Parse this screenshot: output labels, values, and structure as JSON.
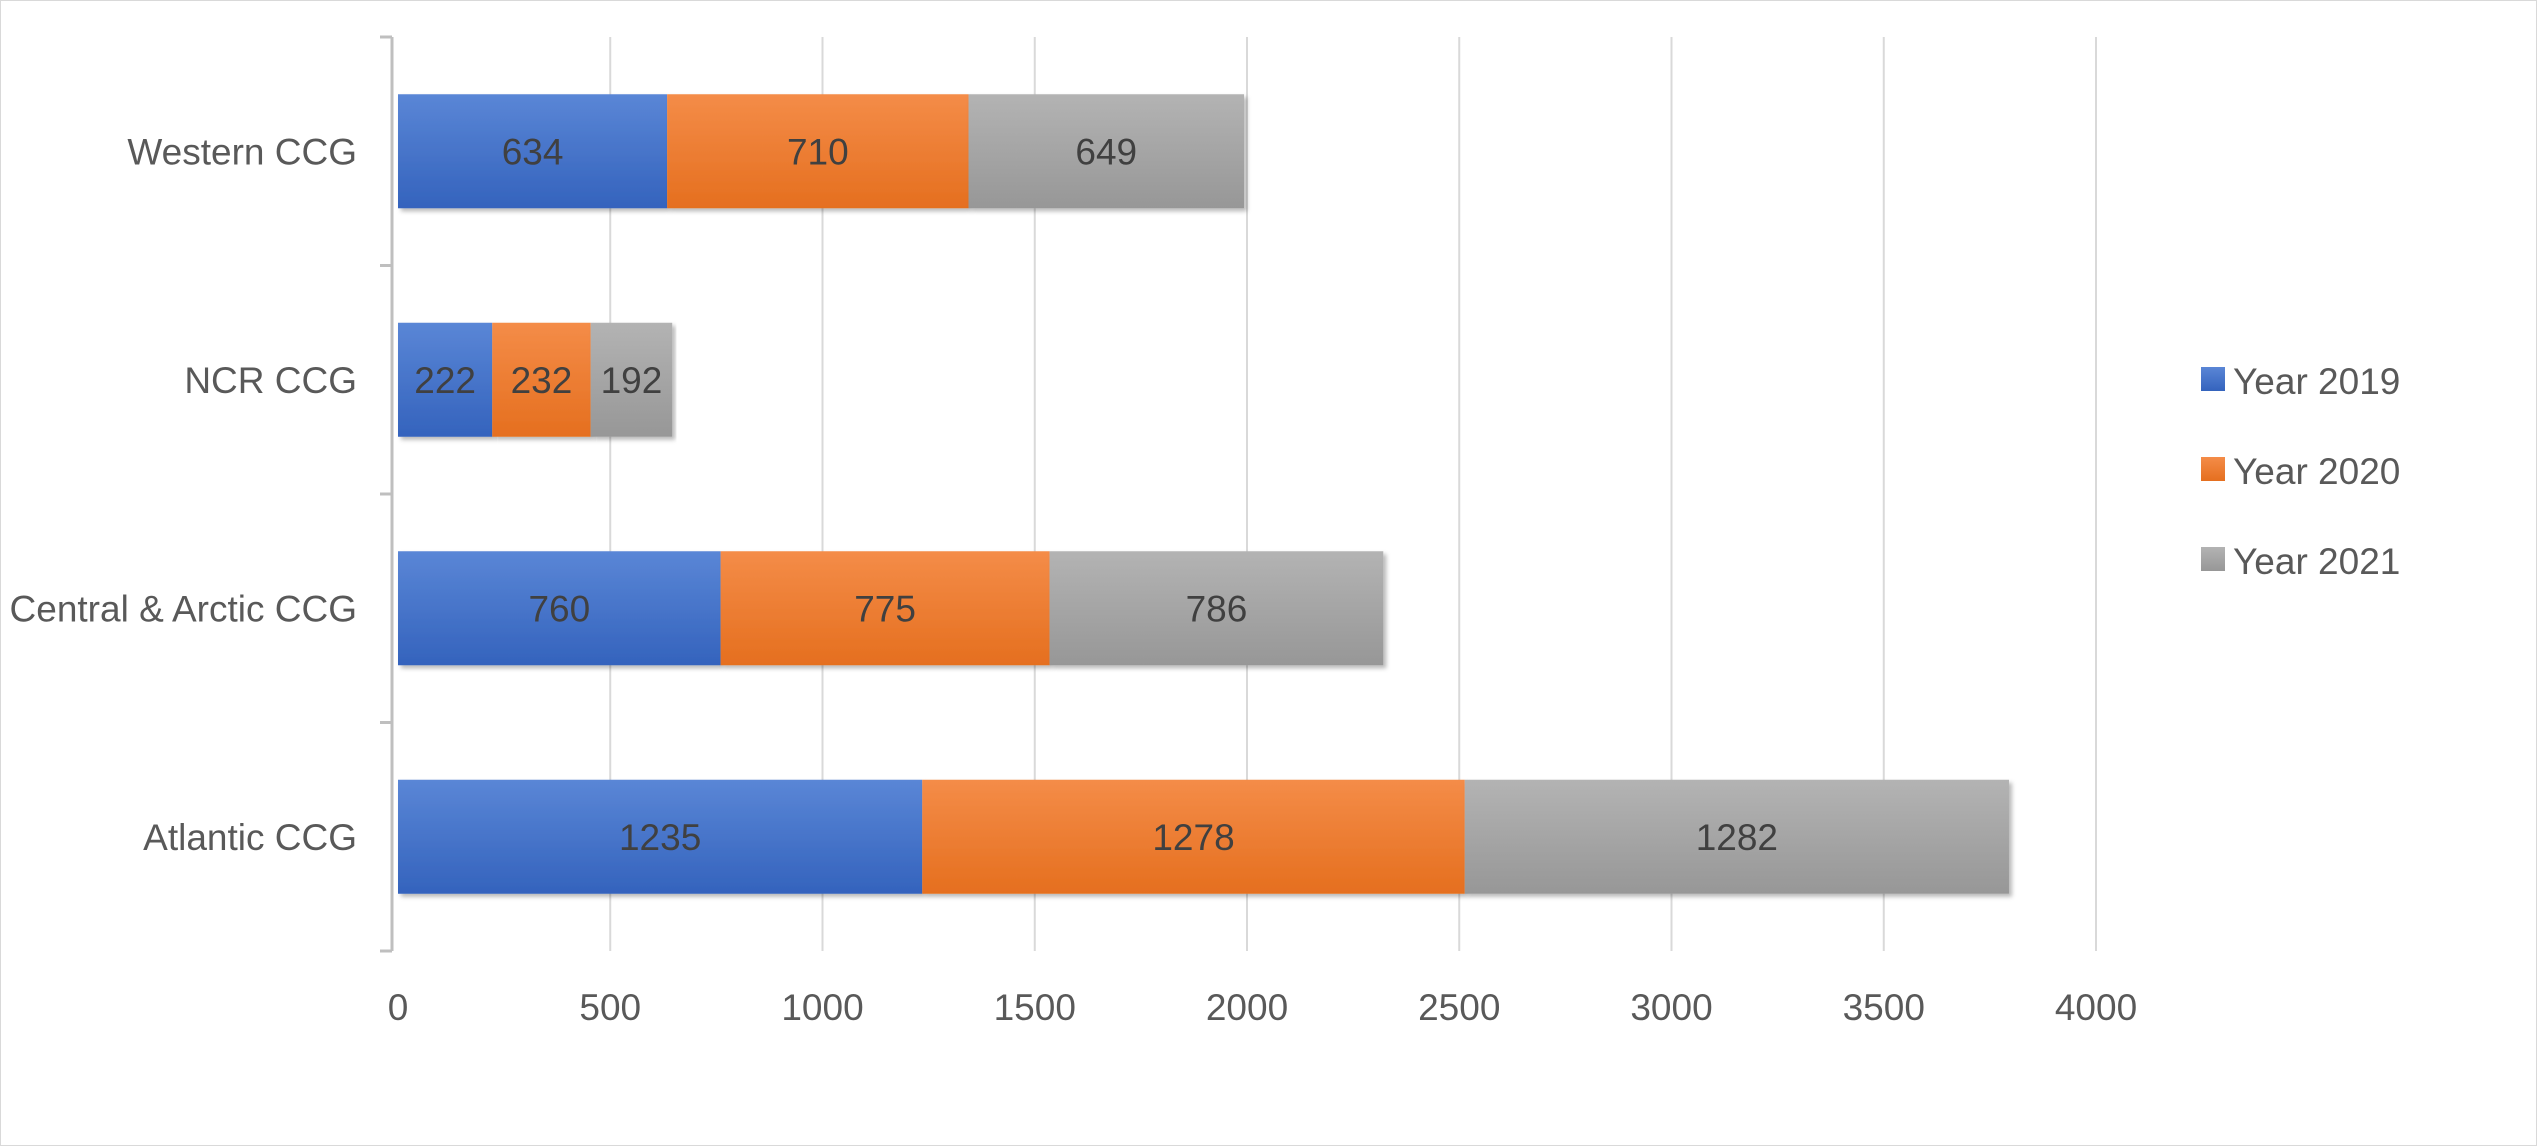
{
  "chart_data": {
    "type": "bar",
    "orientation": "horizontal",
    "stacked": true,
    "categories": [
      "Atlantic CCG",
      "Central & Arctic CCG",
      "NCR CCG",
      "Western CCG"
    ],
    "series": [
      {
        "name": "Year 2019",
        "values": [
          1235,
          760,
          222,
          634
        ],
        "color": "#4472C4"
      },
      {
        "name": "Year 2020",
        "values": [
          1278,
          775,
          232,
          710
        ],
        "color": "#ED7D31"
      },
      {
        "name": "Year 2021",
        "values": [
          1282,
          786,
          192,
          649
        ],
        "color": "#A5A5A5"
      }
    ],
    "xlim": [
      0,
      4000
    ],
    "xticks": [
      0,
      500,
      1000,
      1500,
      2000,
      2500,
      3000,
      3500,
      4000
    ],
    "grid": "vertical",
    "legend_position": "right",
    "title": "",
    "xlabel": "",
    "ylabel": ""
  }
}
